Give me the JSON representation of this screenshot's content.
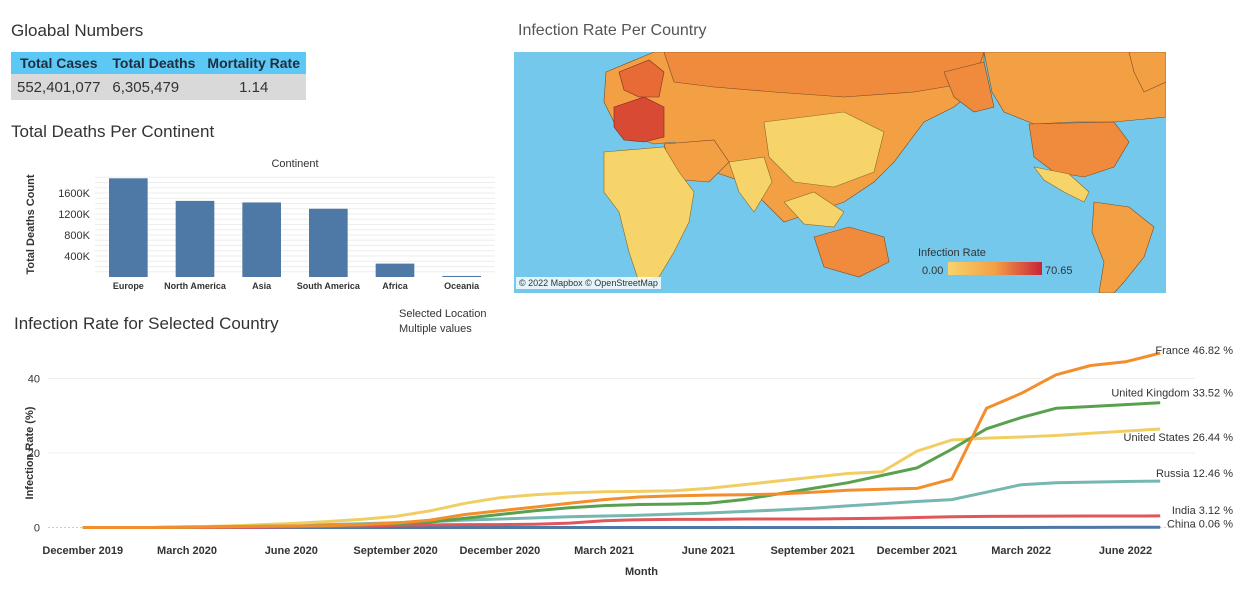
{
  "titles": {
    "global": "Gloabal Numbers",
    "continent": "Total Deaths Per Continent",
    "map": "Infection Rate Per Country",
    "selected": "Infection Rate for Selected Country"
  },
  "kpi": {
    "headers": [
      "Total Cases",
      "Total Deaths",
      "Mortality Rate"
    ],
    "values": [
      "552,401,077",
      "6,305,479",
      "1.14"
    ]
  },
  "selected_location": {
    "label": "Selected Location",
    "value": "Multiple values"
  },
  "map": {
    "attribution": "© 2022 Mapbox © OpenStreetMap",
    "legend_title": "Infection Rate",
    "legend_min": "0.00",
    "legend_max": "70.65",
    "colors": {
      "ocean": "#74c8ec",
      "low": "#f7d46a",
      "mid": "#f3a044",
      "high": "#c9223a"
    }
  },
  "chart_data": [
    {
      "type": "bar",
      "title": "Continent",
      "ylabel": "Total Deaths Count",
      "categories": [
        "Europe",
        "North America",
        "Asia",
        "South America",
        "Africa",
        "Oceania"
      ],
      "values": [
        1880000,
        1450000,
        1420000,
        1300000,
        255000,
        20000
      ],
      "ylim": [
        0,
        2000000
      ],
      "yticks": [
        400000,
        800000,
        1200000,
        1600000
      ],
      "ytick_labels": [
        "400K",
        "800K",
        "1200K",
        "1600K"
      ],
      "color": "#4e79a7"
    },
    {
      "type": "line",
      "xlabel": "Month",
      "ylabel": "Infection Rate (%)",
      "x_tick_labels": [
        "December 2019",
        "March 2020",
        "June 2020",
        "September 2020",
        "December 2020",
        "March 2021",
        "June 2021",
        "September 2021",
        "December 2021",
        "March 2022",
        "June 2022"
      ],
      "x_tick_months": [
        0,
        3,
        6,
        9,
        12,
        15,
        18,
        21,
        24,
        27,
        30
      ],
      "xlim_months": [
        -1,
        32
      ],
      "ylim": [
        -2,
        49
      ],
      "yticks": [
        0,
        20,
        40
      ],
      "series": [
        {
          "name": "France",
          "end_label": "46.82 %",
          "color": "#f28e2b",
          "values": [
            0,
            0,
            0,
            0.1,
            0.2,
            0.3,
            0.4,
            0.5,
            0.8,
            1.2,
            2.0,
            3.5,
            4.5,
            5.5,
            6.5,
            7.5,
            8.2,
            8.5,
            8.7,
            8.8,
            9.0,
            9.5,
            10.0,
            10.3,
            10.5,
            13.0,
            32.0,
            36.0,
            41.0,
            43.5,
            44.5,
            46.82
          ]
        },
        {
          "name": "United Kingdom",
          "end_label": "33.52 %",
          "color": "#59a14f",
          "values": [
            0,
            0,
            0,
            0.1,
            0.2,
            0.3,
            0.4,
            0.5,
            0.7,
            1.0,
            1.5,
            2.5,
            3.5,
            4.5,
            5.3,
            5.9,
            6.2,
            6.3,
            6.5,
            7.5,
            9.0,
            10.5,
            12.0,
            14.0,
            16.0,
            21.0,
            26.5,
            29.5,
            32.0,
            32.5,
            33.0,
            33.52
          ]
        },
        {
          "name": "United States",
          "end_label": "26.44 %",
          "color": "#f1ce63",
          "values": [
            0,
            0,
            0,
            0.2,
            0.4,
            0.7,
            1.1,
            1.6,
            2.2,
            3.0,
            4.5,
            6.5,
            8.0,
            8.8,
            9.3,
            9.6,
            9.7,
            9.9,
            10.5,
            11.5,
            12.5,
            13.5,
            14.5,
            15.0,
            20.5,
            23.5,
            24.0,
            24.3,
            24.7,
            25.3,
            25.9,
            26.44
          ]
        },
        {
          "name": "Russia",
          "end_label": "12.46 %",
          "color": "#76b7b2",
          "values": [
            0,
            0,
            0,
            0.1,
            0.2,
            0.4,
            0.6,
            0.8,
            1.0,
            1.3,
            1.6,
            2.0,
            2.3,
            2.6,
            2.9,
            3.1,
            3.3,
            3.6,
            3.9,
            4.3,
            4.7,
            5.2,
            5.8,
            6.4,
            7.0,
            7.5,
            9.5,
            11.5,
            12.0,
            12.2,
            12.35,
            12.46
          ]
        },
        {
          "name": "India",
          "end_label": "3.12 %",
          "color": "#e15759",
          "values": [
            0,
            0,
            0,
            0,
            0,
            0.1,
            0.2,
            0.3,
            0.4,
            0.6,
            0.7,
            0.8,
            0.8,
            0.9,
            1.2,
            1.8,
            2.1,
            2.2,
            2.2,
            2.3,
            2.3,
            2.3,
            2.4,
            2.5,
            2.7,
            2.9,
            3.0,
            3.05,
            3.08,
            3.1,
            3.11,
            3.12
          ]
        },
        {
          "name": "China",
          "end_label": "0.06 %",
          "color": "#4e79a7",
          "values": [
            0,
            0,
            0,
            0,
            0,
            0,
            0,
            0,
            0,
            0,
            0,
            0,
            0,
            0,
            0,
            0,
            0,
            0,
            0,
            0,
            0,
            0,
            0,
            0,
            0,
            0,
            0,
            0.01,
            0.03,
            0.05,
            0.06,
            0.06
          ]
        }
      ]
    }
  ]
}
